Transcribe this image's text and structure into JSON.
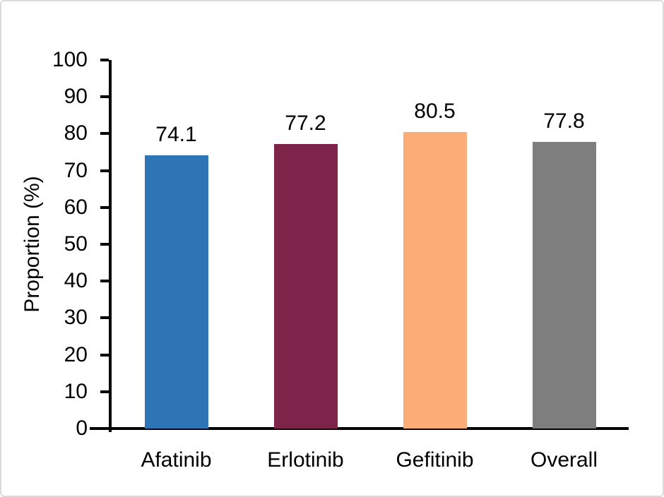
{
  "figure": {
    "background": "#FFFFFF",
    "border_color": "#DBDBDB"
  },
  "chart_data": {
    "type": "bar",
    "categories": [
      "Afatinib",
      "Erlotinib",
      "Gefitinib",
      "Overall"
    ],
    "values": [
      74.1,
      77.2,
      80.5,
      77.8
    ],
    "value_labels": [
      "74.1",
      "77.2",
      "80.5",
      "77.8"
    ],
    "bar_colors": [
      "#2E75B6",
      "#7E2349",
      "#FBAC77",
      "#7E7E7E"
    ],
    "title": "",
    "xlabel": "",
    "ylabel": "Proportion (%)",
    "ylim": [
      0,
      100
    ],
    "ytick_interval": 10,
    "ytick_labels": [
      "0",
      "10",
      "20",
      "30",
      "40",
      "50",
      "60",
      "70",
      "80",
      "90",
      "100"
    ],
    "grid": false,
    "legend": false,
    "axis_color": "#000000",
    "text_color": "#000000"
  }
}
